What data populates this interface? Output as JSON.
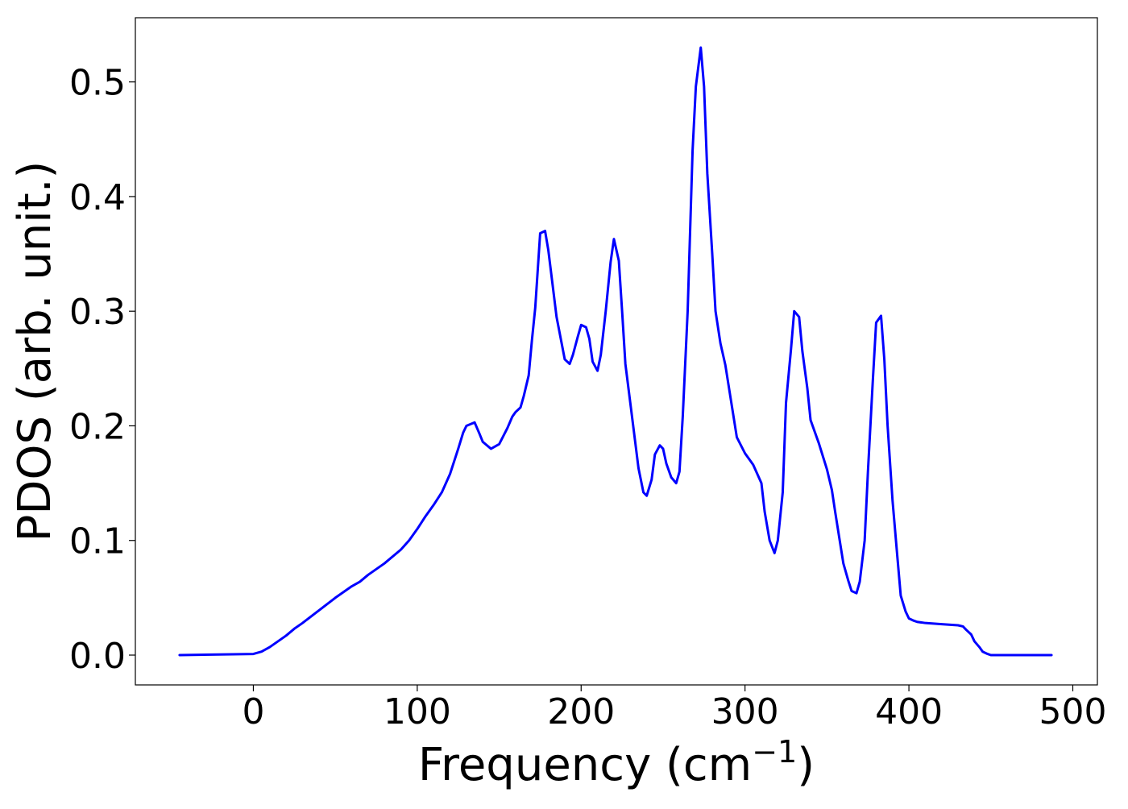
{
  "chart_data": {
    "type": "line",
    "title": "",
    "xlabel": "Frequency (cm",
    "xlabel_sup": "−1",
    "xlabel_close": ")",
    "ylabel": "PDOS (arb. unit.)",
    "xlim": [
      -72,
      515
    ],
    "ylim": [
      -0.026,
      0.556
    ],
    "grid": false,
    "x_ticks": [
      {
        "value": 0,
        "label": "0"
      },
      {
        "value": 100,
        "label": "100"
      },
      {
        "value": 200,
        "label": "200"
      },
      {
        "value": 300,
        "label": "300"
      },
      {
        "value": 400,
        "label": "400"
      },
      {
        "value": 500,
        "label": "500"
      }
    ],
    "y_ticks": [
      {
        "value": 0.0,
        "label": "0.0"
      },
      {
        "value": 0.1,
        "label": "0.1"
      },
      {
        "value": 0.2,
        "label": "0.2"
      },
      {
        "value": 0.3,
        "label": "0.3"
      },
      {
        "value": 0.4,
        "label": "0.4"
      },
      {
        "value": 0.5,
        "label": "0.5"
      }
    ],
    "series": [
      {
        "name": "",
        "color": "#0000ff",
        "x": [
          -45,
          0,
          5,
          10,
          15,
          20,
          25,
          30,
          40,
          50,
          60,
          65,
          70,
          75,
          80,
          90,
          95,
          100,
          105,
          110,
          115,
          120,
          125,
          128,
          130,
          135,
          138,
          140,
          145,
          150,
          155,
          158,
          160,
          163,
          165,
          168,
          170,
          172,
          175,
          178,
          180,
          185,
          190,
          193,
          195,
          198,
          200,
          203,
          205,
          207,
          210,
          212,
          215,
          218,
          220,
          223,
          225,
          227,
          230,
          235,
          238,
          240,
          243,
          245,
          248,
          250,
          252,
          255,
          258,
          260,
          262,
          265,
          268,
          270,
          273,
          275,
          277,
          280,
          282,
          285,
          288,
          290,
          295,
          300,
          303,
          305,
          310,
          312,
          315,
          318,
          320,
          323,
          325,
          328,
          330,
          333,
          335,
          338,
          340,
          345,
          350,
          353,
          355,
          358,
          360,
          363,
          365,
          368,
          370,
          373,
          375,
          378,
          380,
          383,
          385,
          387,
          390,
          393,
          395,
          398,
          400,
          403,
          405,
          410,
          420,
          430,
          433,
          435,
          438,
          440,
          443,
          445,
          448,
          450,
          455,
          460,
          487
        ],
        "y": [
          0.0,
          0.001,
          0.003,
          0.007,
          0.012,
          0.017,
          0.023,
          0.028,
          0.039,
          0.05,
          0.06,
          0.064,
          0.07,
          0.075,
          0.08,
          0.092,
          0.1,
          0.11,
          0.121,
          0.131,
          0.142,
          0.158,
          0.18,
          0.194,
          0.2,
          0.203,
          0.193,
          0.186,
          0.18,
          0.184,
          0.198,
          0.208,
          0.212,
          0.216,
          0.226,
          0.244,
          0.275,
          0.303,
          0.368,
          0.37,
          0.353,
          0.295,
          0.258,
          0.254,
          0.262,
          0.278,
          0.288,
          0.286,
          0.276,
          0.256,
          0.248,
          0.262,
          0.3,
          0.343,
          0.363,
          0.344,
          0.3,
          0.254,
          0.22,
          0.163,
          0.142,
          0.139,
          0.153,
          0.175,
          0.183,
          0.18,
          0.167,
          0.155,
          0.15,
          0.16,
          0.208,
          0.3,
          0.44,
          0.496,
          0.53,
          0.496,
          0.42,
          0.35,
          0.3,
          0.272,
          0.253,
          0.235,
          0.19,
          0.176,
          0.17,
          0.166,
          0.15,
          0.125,
          0.1,
          0.089,
          0.1,
          0.142,
          0.22,
          0.266,
          0.3,
          0.295,
          0.265,
          0.233,
          0.205,
          0.185,
          0.162,
          0.144,
          0.125,
          0.098,
          0.08,
          0.065,
          0.056,
          0.054,
          0.064,
          0.1,
          0.16,
          0.24,
          0.29,
          0.296,
          0.258,
          0.2,
          0.135,
          0.085,
          0.052,
          0.038,
          0.032,
          0.03,
          0.029,
          0.028,
          0.027,
          0.026,
          0.025,
          0.022,
          0.018,
          0.012,
          0.007,
          0.003,
          0.001,
          0.0,
          0.0,
          0.0,
          0.0
        ]
      }
    ]
  }
}
